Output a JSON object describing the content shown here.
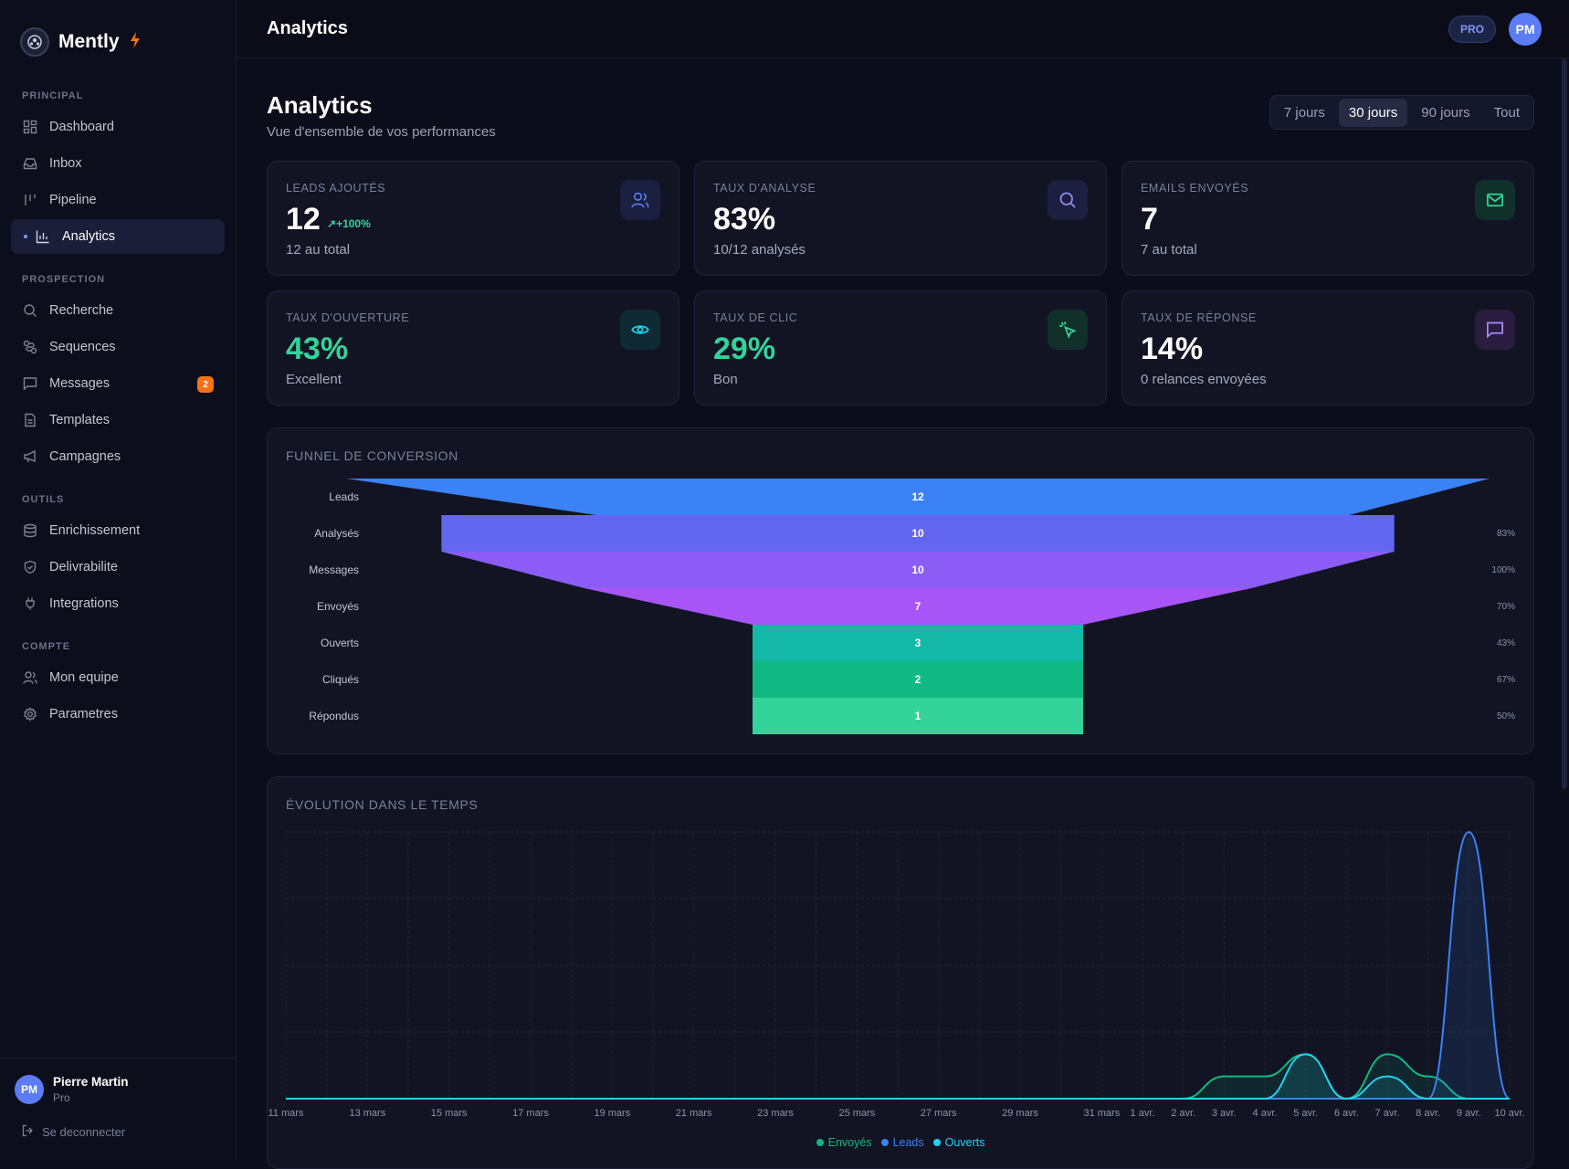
{
  "app": {
    "name": "Mently"
  },
  "sidebar": {
    "sections": {
      "principal": "PRINCIPAL",
      "prospection": "PROSPECTION",
      "outils": "OUTILS",
      "compte": "COMPTE"
    },
    "items": [
      {
        "label": "Dashboard",
        "icon": "grid-icon"
      },
      {
        "label": "Inbox",
        "icon": "inbox-icon"
      },
      {
        "label": "Pipeline",
        "icon": "pipeline-icon"
      },
      {
        "label": "Analytics",
        "icon": "bar-chart-icon",
        "active": true
      },
      {
        "label": "Recherche",
        "icon": "search-icon"
      },
      {
        "label": "Sequences",
        "icon": "sequence-icon"
      },
      {
        "label": "Messages",
        "icon": "message-icon",
        "badge": "2"
      },
      {
        "label": "Templates",
        "icon": "file-icon"
      },
      {
        "label": "Campagnes",
        "icon": "megaphone-icon"
      },
      {
        "label": "Enrichissement",
        "icon": "database-icon"
      },
      {
        "label": "Delivrabilite",
        "icon": "shield-icon"
      },
      {
        "label": "Integrations",
        "icon": "plug-icon"
      },
      {
        "label": "Mon equipe",
        "icon": "users-icon"
      },
      {
        "label": "Parametres",
        "icon": "gear-icon"
      }
    ],
    "user": {
      "initials": "PM",
      "name": "Pierre Martin",
      "plan": "Pro",
      "logout": "Se deconnecter"
    }
  },
  "header": {
    "title": "Analytics",
    "pro_badge": "PRO",
    "avatar": "PM"
  },
  "page": {
    "title": "Analytics",
    "subtitle": "Vue d'ensemble de vos performances",
    "ranges": [
      "7 jours",
      "30 jours",
      "90 jours",
      "Tout"
    ],
    "selected_range": "30 jours"
  },
  "stats": [
    {
      "label": "LEADS AJOUTÉS",
      "value": "12",
      "trend": "+100%",
      "sub": "12 au total",
      "icon": "users-icon",
      "accent": "#5b7cf5"
    },
    {
      "label": "TAUX D'ANALYSE",
      "value": "83%",
      "sub": "10/12 analysés",
      "icon": "search-icon",
      "accent": "#8b8ff5"
    },
    {
      "label": "EMAILS ENVOYÉS",
      "value": "7",
      "sub": "7 au total",
      "icon": "mail-icon",
      "accent": "#34d399"
    },
    {
      "label": "TAUX D'OUVERTURE",
      "value": "43%",
      "sub": "Excellent",
      "icon": "eye-icon",
      "accent": "#22d3ee",
      "value_color": "green"
    },
    {
      "label": "TAUX DE CLIC",
      "value": "29%",
      "sub": "Bon",
      "icon": "click-icon",
      "accent": "#34d399",
      "value_color": "green"
    },
    {
      "label": "TAUX DE RÉPONSE",
      "value": "14%",
      "sub": "0 relances envoyées",
      "icon": "chat-icon",
      "accent": "#a78bfa"
    }
  ],
  "funnel": {
    "title": "FUNNEL DE CONVERSION",
    "stages": [
      {
        "label": "Leads",
        "value": 12,
        "pct": "",
        "color": "#3b82f6"
      },
      {
        "label": "Analysés",
        "value": 10,
        "pct": "83%",
        "color": "#6366f1"
      },
      {
        "label": "Messages",
        "value": 10,
        "pct": "100%",
        "color": "#8b5cf6"
      },
      {
        "label": "Envoyés",
        "value": 7,
        "pct": "70%",
        "color": "#a855f7"
      },
      {
        "label": "Ouverts",
        "value": 3,
        "pct": "43%",
        "color": "#14b8a6"
      },
      {
        "label": "Cliqués",
        "value": 2,
        "pct": "67%",
        "color": "#10b981"
      },
      {
        "label": "Répondus",
        "value": 1,
        "pct": "50%",
        "color": "#34d399"
      }
    ]
  },
  "chart_data": {
    "type": "area",
    "title": "ÉVOLUTION DANS LE TEMPS",
    "x": [
      "11 mars",
      "12 mars",
      "13 mars",
      "14 mars",
      "15 mars",
      "16 mars",
      "17 mars",
      "18 mars",
      "19 mars",
      "20 mars",
      "21 mars",
      "22 mars",
      "23 mars",
      "24 mars",
      "25 mars",
      "26 mars",
      "27 mars",
      "28 mars",
      "29 mars",
      "30 mars",
      "31 mars",
      "1 avr.",
      "2 avr.",
      "3 avr.",
      "4 avr.",
      "5 avr.",
      "6 avr.",
      "7 avr.",
      "8 avr.",
      "9 avr.",
      "10 avr."
    ],
    "tick_labels": [
      "11 mars",
      "13 mars",
      "15 mars",
      "17 mars",
      "19 mars",
      "21 mars",
      "23 mars",
      "25 mars",
      "27 mars",
      "29 mars",
      "31 mars",
      "1 avr.",
      "2 avr.",
      "3 avr.",
      "4 avr.",
      "5 avr.",
      "6 avr.",
      "7 avr.",
      "8 avr.",
      "9 avr.",
      "10 avr."
    ],
    "series": [
      {
        "name": "Envoyés",
        "color": "#10b981",
        "values": [
          0,
          0,
          0,
          0,
          0,
          0,
          0,
          0,
          0,
          0,
          0,
          0,
          0,
          0,
          0,
          0,
          0,
          0,
          0,
          0,
          0,
          0,
          0,
          1,
          1,
          2,
          0,
          2,
          1,
          0,
          0
        ]
      },
      {
        "name": "Leads",
        "color": "#3b82f6",
        "values": [
          0,
          0,
          0,
          0,
          0,
          0,
          0,
          0,
          0,
          0,
          0,
          0,
          0,
          0,
          0,
          0,
          0,
          0,
          0,
          0,
          0,
          0,
          0,
          0,
          0,
          0,
          0,
          0,
          0,
          12,
          0
        ]
      },
      {
        "name": "Ouverts",
        "color": "#22d3ee",
        "values": [
          0,
          0,
          0,
          0,
          0,
          0,
          0,
          0,
          0,
          0,
          0,
          0,
          0,
          0,
          0,
          0,
          0,
          0,
          0,
          0,
          0,
          0,
          0,
          0,
          0,
          2,
          0,
          1,
          0,
          0,
          0
        ]
      }
    ],
    "ylim": [
      0,
      12
    ],
    "grid": true,
    "legend": "bottom"
  }
}
